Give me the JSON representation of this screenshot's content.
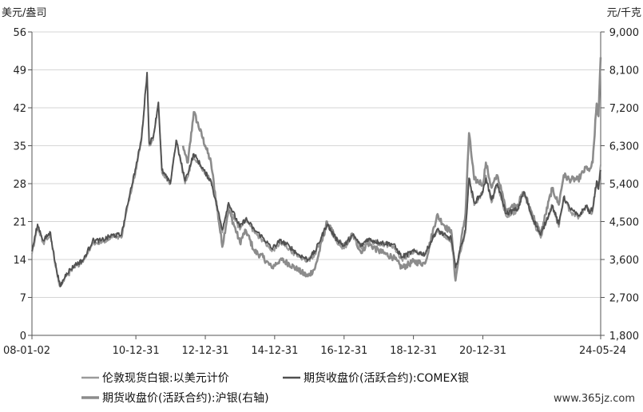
{
  "chart_data": {
    "type": "line",
    "left_unit": "美元/盎司",
    "right_unit": "元/千克",
    "left_ylim": [
      0,
      56
    ],
    "left_ticks": [
      "0",
      "7",
      "14",
      "21",
      "28",
      "35",
      "42",
      "49",
      "56"
    ],
    "right_ylim": [
      1800,
      9000
    ],
    "right_ticks": [
      "1,800",
      "2,700",
      "3,600",
      "4,500",
      "5,400",
      "6,300",
      "7,200",
      "8,100",
      "9,000"
    ],
    "x_ticks": [
      "08-01-02",
      "10-12-31",
      "12-12-31",
      "14-12-31",
      "16-12-31",
      "18-12-31",
      "20-12-31",
      "24-05-24"
    ],
    "grid": "horizontal",
    "legend_position": "bottom",
    "series": [
      {
        "name": "伦敦现货白银:以美元计价",
        "axis": "left",
        "color": "#9a9a9a",
        "points": [
          [
            "2008-01-02",
            15
          ],
          [
            "2008-03-01",
            20
          ],
          [
            "2008-05-01",
            17
          ],
          [
            "2008-07-15",
            18.5
          ],
          [
            "2008-09-01",
            13
          ],
          [
            "2008-10-25",
            9
          ],
          [
            "2009-01-01",
            11
          ],
          [
            "2009-04-01",
            12.5
          ],
          [
            "2009-07-01",
            14
          ],
          [
            "2009-10-01",
            17
          ],
          [
            "2010-01-01",
            17
          ],
          [
            "2010-05-01",
            18.5
          ],
          [
            "2010-08-01",
            18
          ],
          [
            "2010-11-01",
            26
          ],
          [
            "2010-12-31",
            30.5
          ],
          [
            "2011-03-01",
            36
          ],
          [
            "2011-04-28",
            48.5
          ],
          [
            "2011-05-20",
            35
          ],
          [
            "2011-07-01",
            36
          ],
          [
            "2011-08-25",
            43
          ],
          [
            "2011-10-01",
            30
          ],
          [
            "2011-12-29",
            28
          ],
          [
            "2012-02-29",
            36
          ],
          [
            "2012-06-01",
            28
          ],
          [
            "2012-09-01",
            33
          ],
          [
            "2012-12-31",
            30
          ],
          [
            "2013-03-01",
            28.5
          ],
          [
            "2013-06-28",
            19
          ],
          [
            "2013-09-01",
            24
          ],
          [
            "2013-12-31",
            19.5
          ],
          [
            "2014-03-01",
            21.5
          ],
          [
            "2014-06-01",
            19
          ],
          [
            "2014-09-01",
            17.5
          ],
          [
            "2014-12-01",
            15.5
          ],
          [
            "2015-03-01",
            17
          ],
          [
            "2015-06-01",
            16
          ],
          [
            "2015-09-01",
            14.5
          ],
          [
            "2015-12-15",
            13.8
          ],
          [
            "2016-03-01",
            15
          ],
          [
            "2016-07-05",
            20.5
          ],
          [
            "2016-10-01",
            17.5
          ],
          [
            "2016-12-31",
            16
          ],
          [
            "2017-04-01",
            18.5
          ],
          [
            "2017-07-01",
            16
          ],
          [
            "2017-09-01",
            17.5
          ],
          [
            "2017-12-31",
            17
          ],
          [
            "2018-06-01",
            16.5
          ],
          [
            "2018-09-01",
            14
          ],
          [
            "2018-12-31",
            15.5
          ],
          [
            "2019-05-01",
            14.8
          ],
          [
            "2019-09-04",
            19.5
          ],
          [
            "2019-12-31",
            18
          ],
          [
            "2020-02-01",
            17.5
          ],
          [
            "2020-03-18",
            12
          ],
          [
            "2020-05-01",
            15
          ],
          [
            "2020-07-01",
            19
          ],
          [
            "2020-08-07",
            29
          ],
          [
            "2020-10-01",
            24
          ],
          [
            "2020-12-31",
            26.4
          ],
          [
            "2021-02-01",
            29.5
          ],
          [
            "2021-04-01",
            24.5
          ],
          [
            "2021-06-01",
            28
          ],
          [
            "2021-09-01",
            22
          ],
          [
            "2021-12-31",
            23
          ],
          [
            "2022-03-08",
            26.5
          ],
          [
            "2022-06-01",
            21.5
          ],
          [
            "2022-09-01",
            18
          ],
          [
            "2022-12-31",
            24
          ],
          [
            "2023-03-10",
            20
          ],
          [
            "2023-05-01",
            25.5
          ],
          [
            "2023-07-01",
            23
          ],
          [
            "2023-10-01",
            21.5
          ],
          [
            "2023-12-31",
            24
          ],
          [
            "2024-01-25",
            22.5
          ],
          [
            "2024-03-01",
            23
          ],
          [
            "2024-04-12",
            28.5
          ],
          [
            "2024-05-01",
            27
          ],
          [
            "2024-05-24",
            31.5
          ]
        ]
      },
      {
        "name": "期货收盘价(活跃合约):COMEX银",
        "axis": "left",
        "color": "#505050",
        "points": [
          [
            "2008-01-02",
            15.5
          ],
          [
            "2008-03-01",
            20.5
          ],
          [
            "2008-05-01",
            17.5
          ],
          [
            "2008-07-15",
            19
          ],
          [
            "2008-09-01",
            13.5
          ],
          [
            "2008-10-25",
            9
          ],
          [
            "2009-01-01",
            11.5
          ],
          [
            "2009-04-01",
            13
          ],
          [
            "2009-07-01",
            14
          ],
          [
            "2009-10-01",
            17.5
          ],
          [
            "2010-01-01",
            17.5
          ],
          [
            "2010-05-01",
            18.5
          ],
          [
            "2010-08-01",
            18.5
          ],
          [
            "2010-11-01",
            26.5
          ],
          [
            "2010-12-31",
            31
          ],
          [
            "2011-03-01",
            36.5
          ],
          [
            "2011-04-28",
            48.5
          ],
          [
            "2011-05-20",
            35.5
          ],
          [
            "2011-07-01",
            36.5
          ],
          [
            "2011-08-25",
            43
          ],
          [
            "2011-10-01",
            30.5
          ],
          [
            "2011-12-29",
            28
          ],
          [
            "2012-02-29",
            36
          ],
          [
            "2012-06-01",
            28.5
          ],
          [
            "2012-09-01",
            33.5
          ],
          [
            "2012-12-31",
            30
          ],
          [
            "2013-03-01",
            28.5
          ],
          [
            "2013-06-28",
            19.5
          ],
          [
            "2013-09-01",
            24.5
          ],
          [
            "2013-12-31",
            20
          ],
          [
            "2014-03-01",
            21.5
          ],
          [
            "2014-06-01",
            19.5
          ],
          [
            "2014-09-01",
            18
          ],
          [
            "2014-12-01",
            16
          ],
          [
            "2015-03-01",
            17.5
          ],
          [
            "2015-06-01",
            16.5
          ],
          [
            "2015-09-01",
            15
          ],
          [
            "2015-12-15",
            14
          ],
          [
            "2016-03-01",
            15.5
          ],
          [
            "2016-07-05",
            20.5
          ],
          [
            "2016-10-01",
            18
          ],
          [
            "2016-12-31",
            16.5
          ],
          [
            "2017-04-01",
            18.5
          ],
          [
            "2017-07-01",
            16.5
          ],
          [
            "2017-09-01",
            17.8
          ],
          [
            "2017-12-31",
            17.2
          ],
          [
            "2018-06-01",
            16.8
          ],
          [
            "2018-09-01",
            14.5
          ],
          [
            "2018-12-31",
            15.5
          ],
          [
            "2019-05-01",
            15
          ],
          [
            "2019-09-04",
            19.5
          ],
          [
            "2019-12-31",
            18
          ],
          [
            "2020-02-01",
            18
          ],
          [
            "2020-03-18",
            12.5
          ],
          [
            "2020-05-01",
            15.5
          ],
          [
            "2020-07-01",
            19.5
          ],
          [
            "2020-08-07",
            29
          ],
          [
            "2020-10-01",
            24.5
          ],
          [
            "2020-12-31",
            26.4
          ],
          [
            "2021-02-01",
            29
          ],
          [
            "2021-04-01",
            25
          ],
          [
            "2021-06-01",
            28
          ],
          [
            "2021-09-01",
            22.5
          ],
          [
            "2021-12-31",
            23.3
          ],
          [
            "2022-03-08",
            26.5
          ],
          [
            "2022-06-01",
            22
          ],
          [
            "2022-09-01",
            18.5
          ],
          [
            "2022-12-31",
            24
          ],
          [
            "2023-03-10",
            20.5
          ],
          [
            "2023-05-01",
            25.5
          ],
          [
            "2023-07-01",
            23.5
          ],
          [
            "2023-10-01",
            22
          ],
          [
            "2023-12-31",
            24
          ],
          [
            "2024-01-25",
            22.5
          ],
          [
            "2024-03-01",
            23.5
          ],
          [
            "2024-04-12",
            28.5
          ],
          [
            "2024-05-01",
            27
          ],
          [
            "2024-05-24",
            30.5
          ]
        ]
      },
      {
        "name": "期货收盘价(活跃合约):沪银(右轴)",
        "axis": "right",
        "color": "#8c8c8c",
        "points": [
          [
            "2012-05-10",
            6300
          ],
          [
            "2012-06-01",
            6100
          ],
          [
            "2012-07-01",
            5900
          ],
          [
            "2012-09-01",
            7100
          ],
          [
            "2012-12-31",
            6300
          ],
          [
            "2013-03-01",
            5900
          ],
          [
            "2013-06-28",
            3900
          ],
          [
            "2013-09-01",
            4800
          ],
          [
            "2013-12-31",
            4000
          ],
          [
            "2014-03-01",
            4300
          ],
          [
            "2014-06-01",
            3800
          ],
          [
            "2014-09-01",
            3650
          ],
          [
            "2014-12-01",
            3400
          ],
          [
            "2015-03-01",
            3600
          ],
          [
            "2015-06-01",
            3500
          ],
          [
            "2015-09-01",
            3350
          ],
          [
            "2015-12-15",
            3200
          ],
          [
            "2016-03-01",
            3400
          ],
          [
            "2016-07-05",
            4500
          ],
          [
            "2016-10-01",
            4100
          ],
          [
            "2016-12-31",
            3900
          ],
          [
            "2017-04-01",
            4200
          ],
          [
            "2017-07-01",
            3750
          ],
          [
            "2017-09-01",
            4000
          ],
          [
            "2017-12-31",
            3800
          ],
          [
            "2018-06-01",
            3650
          ],
          [
            "2018-09-01",
            3400
          ],
          [
            "2018-12-31",
            3550
          ],
          [
            "2019-05-01",
            3500
          ],
          [
            "2019-09-04",
            4650
          ],
          [
            "2019-12-31",
            4300
          ],
          [
            "2020-02-01",
            4300
          ],
          [
            "2020-03-18",
            3100
          ],
          [
            "2020-05-01",
            3800
          ],
          [
            "2020-07-01",
            4700
          ],
          [
            "2020-08-07",
            6600
          ],
          [
            "2020-10-01",
            5500
          ],
          [
            "2020-12-31",
            5400
          ],
          [
            "2021-02-01",
            5900
          ],
          [
            "2021-04-01",
            5300
          ],
          [
            "2021-06-01",
            5600
          ],
          [
            "2021-09-01",
            4800
          ],
          [
            "2021-12-31",
            4900
          ],
          [
            "2022-03-08",
            5200
          ],
          [
            "2022-06-01",
            4700
          ],
          [
            "2022-09-01",
            4200
          ],
          [
            "2022-12-31",
            5300
          ],
          [
            "2023-03-10",
            4900
          ],
          [
            "2023-05-01",
            5600
          ],
          [
            "2023-07-01",
            5500
          ],
          [
            "2023-10-01",
            5500
          ],
          [
            "2023-12-31",
            5800
          ],
          [
            "2024-01-25",
            5700
          ],
          [
            "2024-03-01",
            5900
          ],
          [
            "2024-04-12",
            7300
          ],
          [
            "2024-05-01",
            7000
          ],
          [
            "2024-05-24",
            8400
          ]
        ]
      }
    ],
    "legend": [
      {
        "label": "伦敦现货白银:以美元计价"
      },
      {
        "label": "期货收盘价(活跃合约):COMEX银"
      },
      {
        "label": "期货收盘价(活跃合约):沪银(右轴)"
      }
    ]
  },
  "watermark": "www.365jz.com"
}
